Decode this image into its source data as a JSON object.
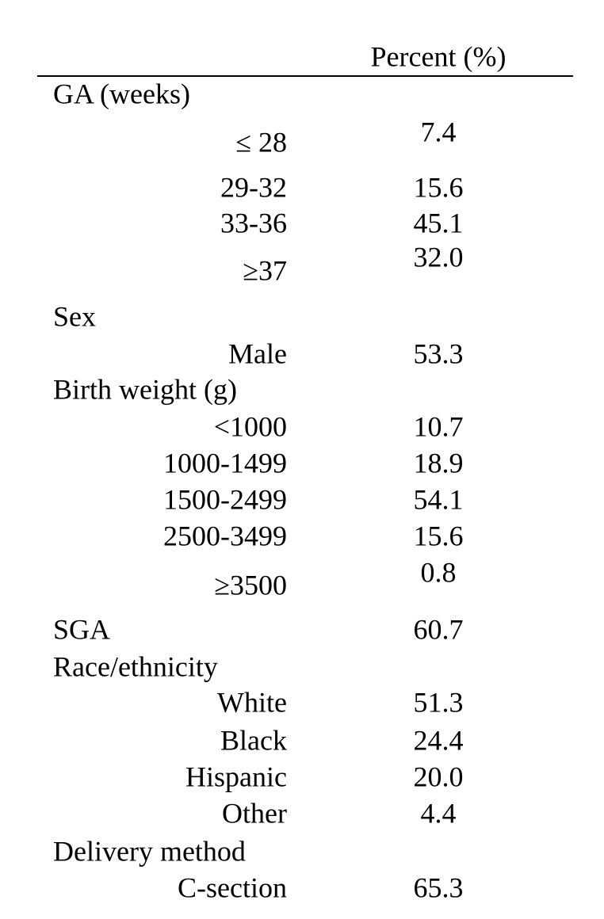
{
  "table": {
    "header": "Percent (%)",
    "sections": [
      {
        "title": "GA (weeks)",
        "rows": [
          {
            "label": "≤ 28",
            "value": "7.4"
          },
          {
            "label": "29-32",
            "value": "15.6"
          },
          {
            "label": "33-36",
            "value": "45.1"
          },
          {
            "label": "≥37",
            "value": "32.0"
          }
        ]
      },
      {
        "title": "Sex",
        "rows": [
          {
            "label": "Male",
            "value": "53.3"
          }
        ]
      },
      {
        "title": "Birth weight (g)",
        "rows": [
          {
            "label": "<1000",
            "value": "10.7"
          },
          {
            "label": "1000-1499",
            "value": "18.9"
          },
          {
            "label": "1500-2499",
            "value": "54.1"
          },
          {
            "label": "2500-3499",
            "value": "15.6"
          },
          {
            "label": "≥3500",
            "value": "0.8"
          }
        ]
      },
      {
        "title": "SGA",
        "value": "60.7"
      },
      {
        "title": "Race/ethnicity",
        "rows": [
          {
            "label": "White",
            "value": "51.3"
          },
          {
            "label": "Black",
            "value": "24.4"
          },
          {
            "label": "Hispanic",
            "value": "20.0"
          },
          {
            "label": "Other",
            "value": "4.4"
          }
        ]
      },
      {
        "title": "Delivery method",
        "rows": [
          {
            "label": "C-section",
            "value": "65.3"
          }
        ]
      }
    ]
  }
}
